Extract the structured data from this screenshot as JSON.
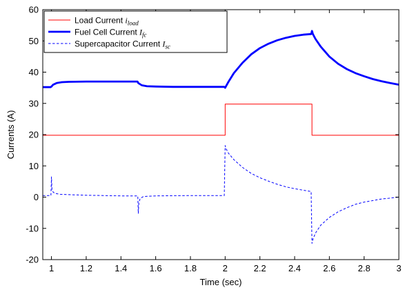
{
  "chart_data": {
    "type": "line",
    "title": "",
    "xlabel": "Time (sec)",
    "ylabel": "Currents (A)",
    "xlim": [
      0.95,
      3.0
    ],
    "ylim": [
      -20,
      60
    ],
    "xticks": [
      1,
      1.2,
      1.4,
      1.6,
      1.8,
      2,
      2.2,
      2.4,
      2.6,
      2.8,
      3
    ],
    "xtick_labels": [
      "1",
      "1.2",
      "1.4",
      "1.6",
      "1.8",
      "2",
      "2.2",
      "2.4",
      "2.6",
      "2.8",
      "3"
    ],
    "yticks": [
      -20,
      -10,
      0,
      10,
      20,
      30,
      40,
      50,
      60
    ],
    "ytick_labels": [
      "-20",
      "-10",
      "0",
      "10",
      "20",
      "30",
      "40",
      "50",
      "60"
    ],
    "grid": false,
    "legend_position": "top-left",
    "series": [
      {
        "name": "Load Current",
        "symbol": "i",
        "subscript": "load",
        "color": "#ff0000",
        "line_style": "solid",
        "line_weight": "thin",
        "x": [
          0.95,
          2.0,
          2.0,
          2.5,
          2.5,
          3.0
        ],
        "y": [
          19.8,
          19.8,
          29.8,
          29.8,
          19.8,
          19.8
        ]
      },
      {
        "name": "Fuel Cell Current",
        "symbol": "I",
        "subscript": "fc",
        "color": "#0000ff",
        "line_style": "solid",
        "line_weight": "thick",
        "x": [
          0.95,
          0.995,
          1.0,
          1.01,
          1.03,
          1.06,
          1.1,
          1.2,
          1.3,
          1.4,
          1.495,
          1.5,
          1.52,
          1.55,
          1.6,
          1.7,
          1.8,
          1.9,
          1.995,
          2.0,
          2.02,
          2.05,
          2.1,
          2.15,
          2.2,
          2.25,
          2.3,
          2.35,
          2.4,
          2.45,
          2.495,
          2.5,
          2.505,
          2.52,
          2.55,
          2.6,
          2.65,
          2.7,
          2.75,
          2.8,
          2.85,
          2.9,
          2.95,
          3.0
        ],
        "y": [
          35.2,
          35.2,
          35.4,
          36.0,
          36.5,
          36.8,
          36.9,
          37.0,
          37.0,
          37.0,
          37.0,
          36.5,
          35.8,
          35.5,
          35.4,
          35.3,
          35.3,
          35.3,
          35.3,
          35.0,
          37.0,
          39.7,
          43.0,
          45.7,
          47.7,
          49.1,
          50.2,
          51.0,
          51.6,
          52.0,
          52.2,
          53.2,
          52.2,
          50.6,
          48.2,
          45.0,
          42.7,
          41.0,
          39.7,
          38.7,
          37.8,
          37.1,
          36.5,
          36.0
        ]
      },
      {
        "name": "Supercapacitor Current",
        "symbol": "I",
        "subscript": "sc",
        "color": "#0000ff",
        "line_style": "dashed",
        "line_weight": "thin",
        "x": [
          0.95,
          0.997,
          1.0,
          1.003,
          1.01,
          1.02,
          1.05,
          1.1,
          1.2,
          1.3,
          1.4,
          1.497,
          1.5,
          1.503,
          1.51,
          1.53,
          1.6,
          1.8,
          1.995,
          2.0,
          2.005,
          2.02,
          2.05,
          2.1,
          2.15,
          2.2,
          2.25,
          2.3,
          2.35,
          2.4,
          2.45,
          2.495,
          2.5,
          2.505,
          2.52,
          2.55,
          2.6,
          2.65,
          2.7,
          2.75,
          2.8,
          2.85,
          2.9,
          2.95,
          3.0
        ],
        "y": [
          0.5,
          0.5,
          6.5,
          2.5,
          1.6,
          1.2,
          0.9,
          0.8,
          0.6,
          0.5,
          0.4,
          0.4,
          -5.2,
          -2.0,
          -0.4,
          0.2,
          0.4,
          0.5,
          0.5,
          16.5,
          15.5,
          14.0,
          12.0,
          9.5,
          7.6,
          6.2,
          5.1,
          4.1,
          3.3,
          2.7,
          2.2,
          1.8,
          -14.8,
          -13.5,
          -11.5,
          -9.0,
          -6.5,
          -4.7,
          -3.4,
          -2.3,
          -1.6,
          -1.1,
          -0.6,
          -0.3,
          0.0
        ]
      }
    ]
  }
}
